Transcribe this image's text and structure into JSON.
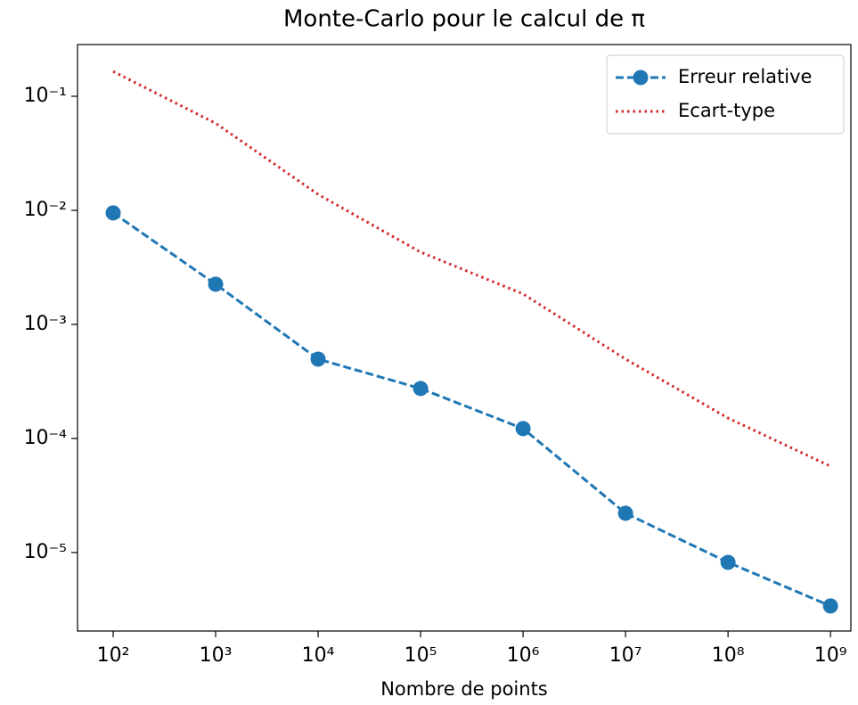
{
  "chart_data": {
    "type": "line",
    "title": "Monte-Carlo pour le calcul de π",
    "xlabel": "Nombre de points",
    "x": [
      100,
      1000,
      10000,
      100000,
      1000000,
      10000000,
      100000000,
      1000000000
    ],
    "series": [
      {
        "name": "Erreur relative",
        "color": "#1f77b4",
        "linestyle": "dashed",
        "marker": "o",
        "values": [
          0.0095,
          0.00225,
          0.000496,
          0.000274,
          0.000122,
          2.21e-05,
          8.2e-06,
          3.4e-06
        ]
      },
      {
        "name": "Ecart-type",
        "color": "#d62728",
        "linestyle": "dotted",
        "values": [
          0.165,
          0.058,
          0.0138,
          0.0043,
          0.00185,
          0.000496,
          0.000151,
          5.7e-05
        ]
      }
    ],
    "xscale": "log",
    "yscale": "log",
    "xlim": [
      44.9,
      1580000000
    ],
    "ylim": [
      2.05e-06,
      0.284
    ],
    "xticks": [
      {
        "value": 100,
        "label": "10²"
      },
      {
        "value": 1000,
        "label": "10³"
      },
      {
        "value": 10000,
        "label": "10⁴"
      },
      {
        "value": 100000,
        "label": "10⁵"
      },
      {
        "value": 1000000,
        "label": "10⁶"
      },
      {
        "value": 10000000,
        "label": "10⁷"
      },
      {
        "value": 100000000,
        "label": "10⁸"
      },
      {
        "value": 1000000000,
        "label": "10⁹"
      }
    ],
    "yticks": [
      {
        "value": 1e-05,
        "label": "10⁻⁵"
      },
      {
        "value": 0.0001,
        "label": "10⁻⁴"
      },
      {
        "value": 0.001,
        "label": "10⁻³"
      },
      {
        "value": 0.01,
        "label": "10⁻²"
      },
      {
        "value": 0.1,
        "label": "10⁻¹"
      }
    ],
    "grid": false,
    "legend": "upper right"
  }
}
